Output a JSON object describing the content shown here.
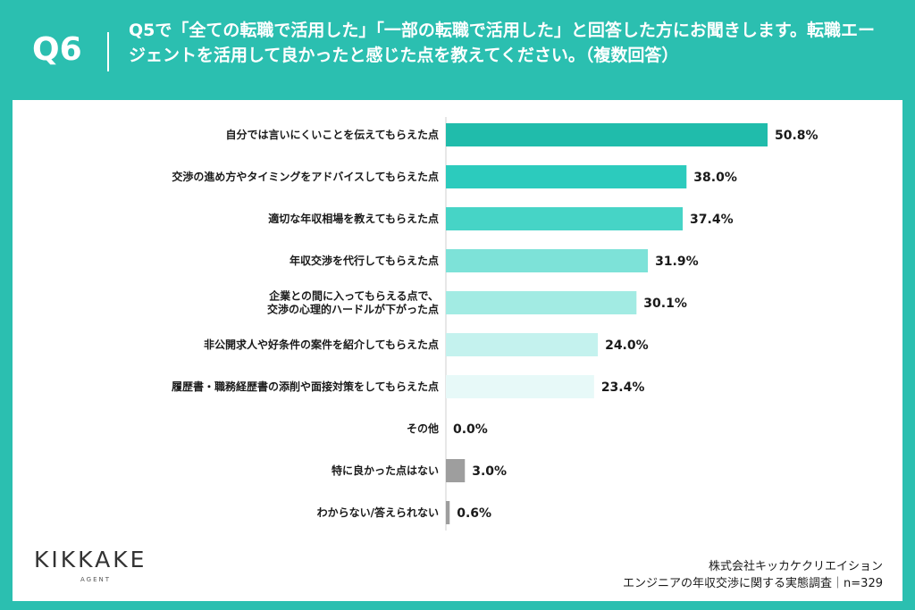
{
  "header": {
    "question_id": "Q6",
    "question_text": "Q5で「全ての転職で活用した」「一部の転職で活用した」と回答した方にお聞きします。転職エージェントを活用して良かったと感じた点を教えてください。（複数回答）"
  },
  "chart_data": {
    "type": "bar",
    "orientation": "horizontal",
    "title": "",
    "xlabel": "",
    "ylabel": "",
    "xlim": [
      0,
      50.8
    ],
    "categories": [
      "自分では言いにくいことを伝えてもらえた点",
      "交渉の進め方やタイミングをアドバイスしてもらえた点",
      "適切な年収相場を教えてもらえた点",
      "年収交渉を代行してもらえた点",
      "企業との間に入ってもらえる点で、\n交渉の心理的ハードルが下がった点",
      "非公開求人や好条件の案件を紹介してもらえた点",
      "履歴書・職務経歴書の添削や面接対策をしてもらえた点",
      "その他",
      "特に良かった点はない",
      "わからない/答えられない"
    ],
    "values": [
      50.8,
      38.0,
      37.4,
      31.9,
      30.1,
      24.0,
      23.4,
      0.0,
      3.0,
      0.6
    ],
    "value_labels": [
      "50.8%",
      "38.0%",
      "37.4%",
      "31.9%",
      "30.1%",
      "24.0%",
      "23.4%",
      "0.0%",
      "3.0%",
      "0.6%"
    ],
    "bar_colors": [
      "#20bcab",
      "#2ccbbd",
      "#46d4c6",
      "#7de2d8",
      "#a2ebe3",
      "#c4f2ee",
      "#e7f9f8",
      "#e7f9f8",
      "#9e9e9e",
      "#9e9e9e"
    ],
    "grid": false,
    "legend": "none"
  },
  "logo": {
    "main": "KIKKAKE",
    "sub": "AGENT"
  },
  "footer": {
    "company": "株式会社キッカケクリエイション",
    "survey": "エンジニアの年収交渉に関する実態調査｜n=329"
  }
}
